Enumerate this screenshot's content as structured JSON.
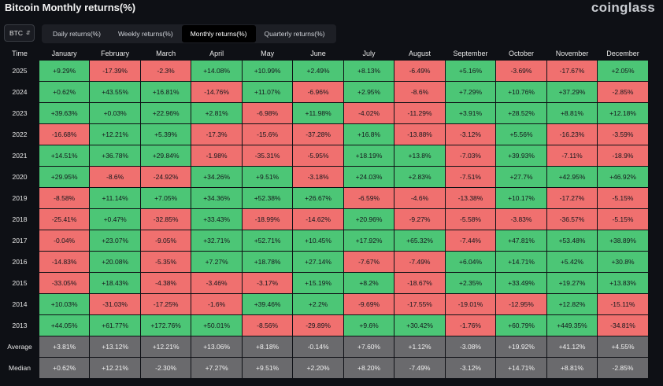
{
  "header": {
    "title": "Bitcoin Monthly returns(%)",
    "logo": "coinglass"
  },
  "controls": {
    "asset": "BTC",
    "tabs": [
      {
        "label": "Daily returns(%)",
        "active": false
      },
      {
        "label": "Weekly returns(%)",
        "active": false
      },
      {
        "label": "Monthly returns(%)",
        "active": true
      },
      {
        "label": "Quarterly returns(%)",
        "active": false
      }
    ]
  },
  "colors": {
    "positive": "#4cc676",
    "negative": "#f0706f",
    "stat": "#6a6a6d",
    "background": "#0e1015"
  },
  "table": {
    "columns": [
      "Time",
      "January",
      "February",
      "March",
      "April",
      "May",
      "June",
      "July",
      "August",
      "September",
      "October",
      "November",
      "December"
    ],
    "rows": [
      {
        "label": "2025",
        "values": [
          "+9.29%",
          "-17.39%",
          "-2.3%",
          "+14.08%",
          "+10.99%",
          "+2.49%",
          "+8.13%",
          "-6.49%",
          "+5.16%",
          "-3.69%",
          "-17.67%",
          "+2.05%"
        ]
      },
      {
        "label": "2024",
        "values": [
          "+0.62%",
          "+43.55%",
          "+16.81%",
          "-14.76%",
          "+11.07%",
          "-6.96%",
          "+2.95%",
          "-8.6%",
          "+7.29%",
          "+10.76%",
          "+37.29%",
          "-2.85%"
        ]
      },
      {
        "label": "2023",
        "values": [
          "+39.63%",
          "+0.03%",
          "+22.96%",
          "+2.81%",
          "-6.98%",
          "+11.98%",
          "-4.02%",
          "-11.29%",
          "+3.91%",
          "+28.52%",
          "+8.81%",
          "+12.18%"
        ]
      },
      {
        "label": "2022",
        "values": [
          "-16.68%",
          "+12.21%",
          "+5.39%",
          "-17.3%",
          "-15.6%",
          "-37.28%",
          "+16.8%",
          "-13.88%",
          "-3.12%",
          "+5.56%",
          "-16.23%",
          "-3.59%"
        ]
      },
      {
        "label": "2021",
        "values": [
          "+14.51%",
          "+36.78%",
          "+29.84%",
          "-1.98%",
          "-35.31%",
          "-5.95%",
          "+18.19%",
          "+13.8%",
          "-7.03%",
          "+39.93%",
          "-7.11%",
          "-18.9%"
        ]
      },
      {
        "label": "2020",
        "values": [
          "+29.95%",
          "-8.6%",
          "-24.92%",
          "+34.26%",
          "+9.51%",
          "-3.18%",
          "+24.03%",
          "+2.83%",
          "-7.51%",
          "+27.7%",
          "+42.95%",
          "+46.92%"
        ]
      },
      {
        "label": "2019",
        "values": [
          "-8.58%",
          "+11.14%",
          "+7.05%",
          "+34.36%",
          "+52.38%",
          "+26.67%",
          "-6.59%",
          "-4.6%",
          "-13.38%",
          "+10.17%",
          "-17.27%",
          "-5.15%"
        ]
      },
      {
        "label": "2018",
        "values": [
          "-25.41%",
          "+0.47%",
          "-32.85%",
          "+33.43%",
          "-18.99%",
          "-14.62%",
          "+20.96%",
          "-9.27%",
          "-5.58%",
          "-3.83%",
          "-36.57%",
          "-5.15%"
        ]
      },
      {
        "label": "2017",
        "values": [
          "-0.04%",
          "+23.07%",
          "-9.05%",
          "+32.71%",
          "+52.71%",
          "+10.45%",
          "+17.92%",
          "+65.32%",
          "-7.44%",
          "+47.81%",
          "+53.48%",
          "+38.89%"
        ]
      },
      {
        "label": "2016",
        "values": [
          "-14.83%",
          "+20.08%",
          "-5.35%",
          "+7.27%",
          "+18.78%",
          "+27.14%",
          "-7.67%",
          "-7.49%",
          "+6.04%",
          "+14.71%",
          "+5.42%",
          "+30.8%"
        ]
      },
      {
        "label": "2015",
        "values": [
          "-33.05%",
          "+18.43%",
          "-4.38%",
          "-3.46%",
          "-3.17%",
          "+15.19%",
          "+8.2%",
          "-18.67%",
          "+2.35%",
          "+33.49%",
          "+19.27%",
          "+13.83%"
        ]
      },
      {
        "label": "2014",
        "values": [
          "+10.03%",
          "-31.03%",
          "-17.25%",
          "-1.6%",
          "+39.46%",
          "+2.2%",
          "-9.69%",
          "-17.55%",
          "-19.01%",
          "-12.95%",
          "+12.82%",
          "-15.11%"
        ]
      },
      {
        "label": "2013",
        "values": [
          "+44.05%",
          "+61.77%",
          "+172.76%",
          "+50.01%",
          "-8.56%",
          "-29.89%",
          "+9.6%",
          "+30.42%",
          "-1.76%",
          "+60.79%",
          "+449.35%",
          "-34.81%"
        ]
      }
    ],
    "stats": [
      {
        "label": "Average",
        "values": [
          "+3.81%",
          "+13.12%",
          "+12.21%",
          "+13.06%",
          "+8.18%",
          "-0.14%",
          "+7.60%",
          "+1.12%",
          "-3.08%",
          "+19.92%",
          "+41.12%",
          "+4.55%"
        ]
      },
      {
        "label": "Median",
        "values": [
          "+0.62%",
          "+12.21%",
          "-2.30%",
          "+7.27%",
          "+9.51%",
          "+2.20%",
          "+8.20%",
          "-7.49%",
          "-3.12%",
          "+14.71%",
          "+8.81%",
          "-2.85%"
        ]
      }
    ]
  }
}
